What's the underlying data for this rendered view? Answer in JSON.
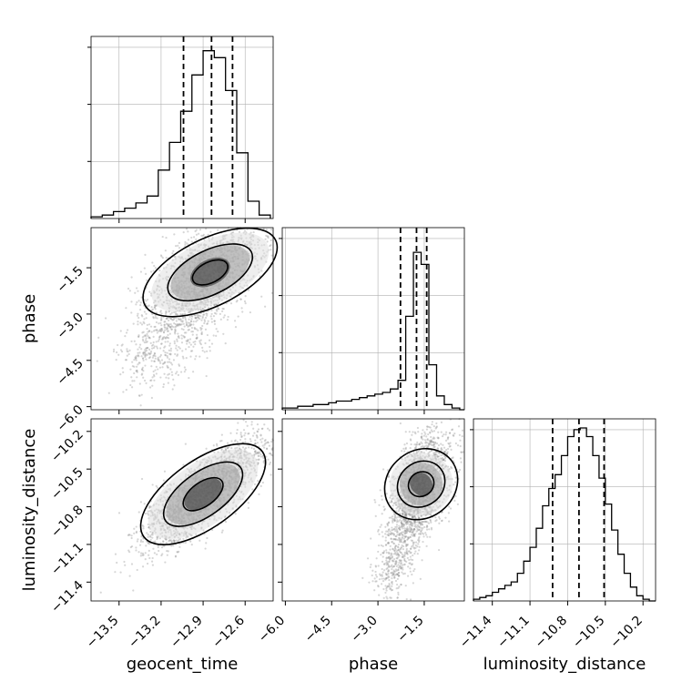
{
  "chart_data": {
    "type": "corner",
    "parameters": [
      "geocent_time",
      "phase",
      "luminosity_distance"
    ],
    "grid": true,
    "colors": {
      "line": "#000000",
      "grid": "#b0b0b0",
      "scatter": "#8a8a8a"
    },
    "panels": [
      {
        "kind": "histogram",
        "param": "geocent_time",
        "range": [
          -13.7,
          -12.4
        ],
        "ymax": 1.0,
        "bin_edges": [
          -13.7,
          -13.62,
          -13.54,
          -13.46,
          -13.38,
          -13.3,
          -13.22,
          -13.14,
          -13.06,
          -12.98,
          -12.9,
          -12.82,
          -12.74,
          -12.66,
          -12.58,
          -12.5,
          -12.42
        ],
        "counts": [
          0.01,
          0.02,
          0.04,
          0.06,
          0.09,
          0.13,
          0.28,
          0.44,
          0.62,
          0.83,
          0.97,
          0.93,
          0.74,
          0.38,
          0.1,
          0.02
        ],
        "quantiles": [
          -13.04,
          -12.84,
          -12.69
        ],
        "ticks": [
          -13.5,
          -13.2,
          -12.9,
          -12.6
        ],
        "tick_labels": [
          "−13.5",
          "−13.2",
          "−12.9",
          "−12.6"
        ]
      },
      {
        "kind": "histogram",
        "param": "phase",
        "range": [
          -6.1,
          -0.2
        ],
        "ymax": 1.0,
        "bin_edges": [
          -6.1,
          -5.85,
          -5.6,
          -5.35,
          -5.1,
          -4.85,
          -4.6,
          -4.35,
          -4.1,
          -3.85,
          -3.6,
          -3.35,
          -3.1,
          -2.85,
          -2.6,
          -2.35,
          -2.1,
          -1.85,
          -1.6,
          -1.35,
          -1.1,
          -0.85,
          -0.6,
          -0.35,
          -0.2
        ],
        "counts": [
          0.01,
          0.01,
          0.02,
          0.02,
          0.03,
          0.03,
          0.04,
          0.05,
          0.05,
          0.06,
          0.07,
          0.08,
          0.09,
          0.1,
          0.12,
          0.17,
          0.54,
          0.91,
          0.84,
          0.26,
          0.08,
          0.03,
          0.01,
          0.0
        ],
        "quantiles": [
          -2.27,
          -1.75,
          -1.42
        ],
        "ticks": [
          -6.0,
          -4.5,
          -3.0,
          -1.5
        ],
        "tick_labels": [
          "−6.0",
          "−4.5",
          "−3.0",
          "−1.5"
        ]
      },
      {
        "kind": "histogram",
        "param": "luminosity_distance",
        "range": [
          -11.55,
          -10.1
        ],
        "ymax": 1.0,
        "bin_edges": [
          -11.55,
          -11.5,
          -11.45,
          -11.4,
          -11.35,
          -11.3,
          -11.25,
          -11.2,
          -11.15,
          -11.1,
          -11.05,
          -11.0,
          -10.95,
          -10.9,
          -10.85,
          -10.8,
          -10.75,
          -10.7,
          -10.65,
          -10.6,
          -10.55,
          -10.5,
          -10.45,
          -10.4,
          -10.35,
          -10.3,
          -10.25,
          -10.2,
          -10.15,
          -10.1
        ],
        "counts": [
          0.01,
          0.02,
          0.03,
          0.05,
          0.07,
          0.09,
          0.11,
          0.16,
          0.23,
          0.31,
          0.42,
          0.55,
          0.65,
          0.73,
          0.84,
          0.95,
          0.99,
          1.0,
          0.95,
          0.84,
          0.71,
          0.56,
          0.41,
          0.27,
          0.16,
          0.08,
          0.03,
          0.01,
          0.0
        ],
        "quantiles": [
          -10.92,
          -10.71,
          -10.51
        ],
        "ticks": [
          -11.4,
          -11.1,
          -10.8,
          -10.5,
          -10.2
        ],
        "tick_labels": [
          "−11.4",
          "−11.1",
          "−10.8",
          "−10.5",
          "−10.2"
        ]
      },
      {
        "kind": "2d",
        "x": "geocent_time",
        "y": "phase",
        "xrange": [
          -13.7,
          -12.4
        ],
        "yrange": [
          -6.1,
          -0.2
        ],
        "density": {
          "center": [
            -12.85,
            -1.65
          ],
          "sd": [
            0.22,
            0.9
          ],
          "rho": 0.55,
          "tail_fraction": 0.35
        },
        "contour_levels": [
          0.4,
          1.1,
          1.8
        ],
        "yticks": [
          -1.5,
          -3.0,
          -4.5,
          -6.0
        ],
        "ytick_labels": [
          "−1.5",
          "−3.0",
          "−4.5",
          "−6.0"
        ]
      },
      {
        "kind": "2d",
        "x": "geocent_time",
        "y": "luminosity_distance",
        "xrange": [
          -13.7,
          -12.4
        ],
        "yrange": [
          -11.55,
          -10.1
        ],
        "density": {
          "center": [
            -12.9,
            -10.7
          ],
          "sd": [
            0.22,
            0.22
          ],
          "rho": 0.8,
          "tail_fraction": 0.0
        },
        "contour_levels": [
          0.5,
          1.1,
          1.8
        ],
        "yticks": [
          -10.2,
          -10.5,
          -10.8,
          -11.1,
          -11.4
        ],
        "ytick_labels": [
          "−10.2",
          "−10.5",
          "−10.8",
          "−11.1",
          "−11.4"
        ]
      },
      {
        "kind": "2d",
        "x": "phase",
        "y": "luminosity_distance",
        "xrange": [
          -6.1,
          -0.2
        ],
        "yrange": [
          -11.55,
          -10.1
        ],
        "density": {
          "center": [
            -1.6,
            -10.62
          ],
          "sd": [
            0.5,
            0.22
          ],
          "rho": 0.45,
          "tail_fraction": 0.3
        },
        "contour_levels": [
          0.5,
          1.1,
          1.8
        ]
      }
    ]
  }
}
